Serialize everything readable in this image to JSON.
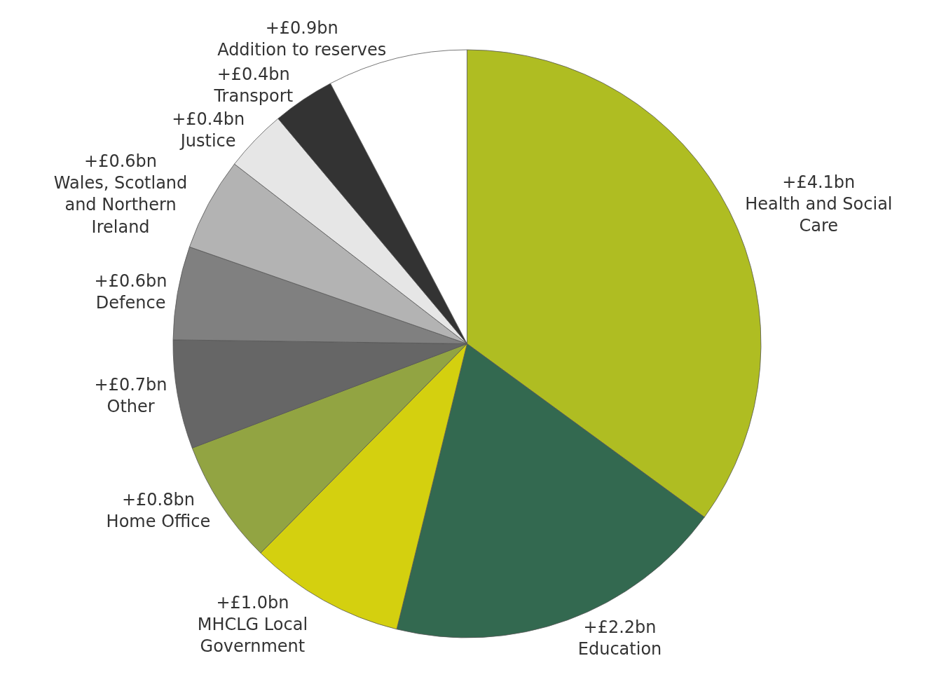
{
  "chart_data": {
    "type": "pie",
    "categories": [
      "Health and Social\nCare",
      "Education",
      "MHCLG Local\nGovernment",
      "Home Office",
      "Other",
      "Defence",
      "Wales, Scotland\nand Northern\nIreland",
      "Justice",
      "Transport",
      "Addition to reserves"
    ],
    "values": [
      4.1,
      2.2,
      1.0,
      0.8,
      0.7,
      0.6,
      0.6,
      0.4,
      0.4,
      0.9
    ],
    "value_labels": [
      "+£4.1bn",
      "+£2.2bn",
      "+£1.0bn",
      "+£0.8bn",
      "+£0.7bn",
      "+£0.6bn",
      "+£0.6bn",
      "+£0.4bn",
      "+£0.4bn",
      "+£0.9bn"
    ],
    "colors": [
      "#afbd22",
      "#336950",
      "#d4d00f",
      "#92a442",
      "#666666",
      "#808080",
      "#b3b3b3",
      "#e6e6e6",
      "#333333",
      "#ffffff"
    ],
    "legend": false
  }
}
